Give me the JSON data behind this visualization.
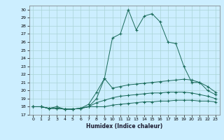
{
  "xlabel": "Humidex (Indice chaleur)",
  "bg_color": "#cceeff",
  "line_color": "#1a6b5a",
  "grid_color": "#aad4d4",
  "xlim": [
    -0.5,
    23.5
  ],
  "ylim": [
    17,
    30.5
  ],
  "yticks": [
    17,
    18,
    19,
    20,
    21,
    22,
    23,
    24,
    25,
    26,
    27,
    28,
    29,
    30
  ],
  "xticks": [
    0,
    1,
    2,
    3,
    4,
    5,
    6,
    7,
    8,
    9,
    10,
    11,
    12,
    13,
    14,
    15,
    16,
    17,
    18,
    19,
    20,
    21,
    22,
    23
  ],
  "line1_x": [
    0,
    1,
    2,
    3,
    4,
    5,
    6,
    7,
    8,
    9,
    10,
    11,
    12,
    13,
    14,
    15,
    16,
    17,
    18,
    19,
    20,
    21,
    22,
    23
  ],
  "line1_y": [
    18.0,
    18.0,
    17.8,
    18.0,
    17.7,
    17.7,
    17.8,
    18.0,
    19.0,
    21.5,
    26.5,
    27.0,
    30.0,
    27.5,
    29.2,
    29.5,
    28.5,
    26.0,
    25.8,
    23.0,
    21.0,
    21.0,
    20.0,
    19.5
  ],
  "line2_x": [
    0,
    1,
    2,
    3,
    4,
    5,
    6,
    7,
    8,
    9,
    10,
    11,
    12,
    13,
    14,
    15,
    16,
    17,
    18,
    19,
    20,
    21,
    22,
    23
  ],
  "line2_y": [
    18.0,
    18.0,
    17.8,
    17.8,
    17.7,
    17.7,
    17.8,
    18.3,
    19.8,
    21.5,
    20.3,
    20.5,
    20.7,
    20.8,
    20.9,
    21.0,
    21.1,
    21.2,
    21.3,
    21.4,
    21.3,
    21.0,
    20.5,
    19.8
  ],
  "line3_x": [
    0,
    1,
    2,
    3,
    4,
    5,
    6,
    7,
    8,
    9,
    10,
    11,
    12,
    13,
    14,
    15,
    16,
    17,
    18,
    19,
    20,
    21,
    22,
    23
  ],
  "line3_y": [
    18.0,
    18.0,
    17.8,
    17.8,
    17.7,
    17.7,
    17.8,
    18.0,
    18.5,
    18.8,
    19.1,
    19.3,
    19.4,
    19.5,
    19.6,
    19.7,
    19.7,
    19.8,
    19.8,
    19.8,
    19.7,
    19.5,
    19.3,
    19.0
  ],
  "line4_x": [
    0,
    1,
    2,
    3,
    4,
    5,
    6,
    7,
    8,
    9,
    10,
    11,
    12,
    13,
    14,
    15,
    16,
    17,
    18,
    19,
    20,
    21,
    22,
    23
  ],
  "line4_y": [
    18.0,
    18.0,
    17.8,
    17.8,
    17.7,
    17.7,
    17.8,
    18.0,
    18.0,
    18.0,
    18.2,
    18.3,
    18.4,
    18.5,
    18.6,
    18.6,
    18.7,
    18.7,
    18.8,
    18.8,
    18.8,
    18.7,
    18.7,
    18.6
  ]
}
